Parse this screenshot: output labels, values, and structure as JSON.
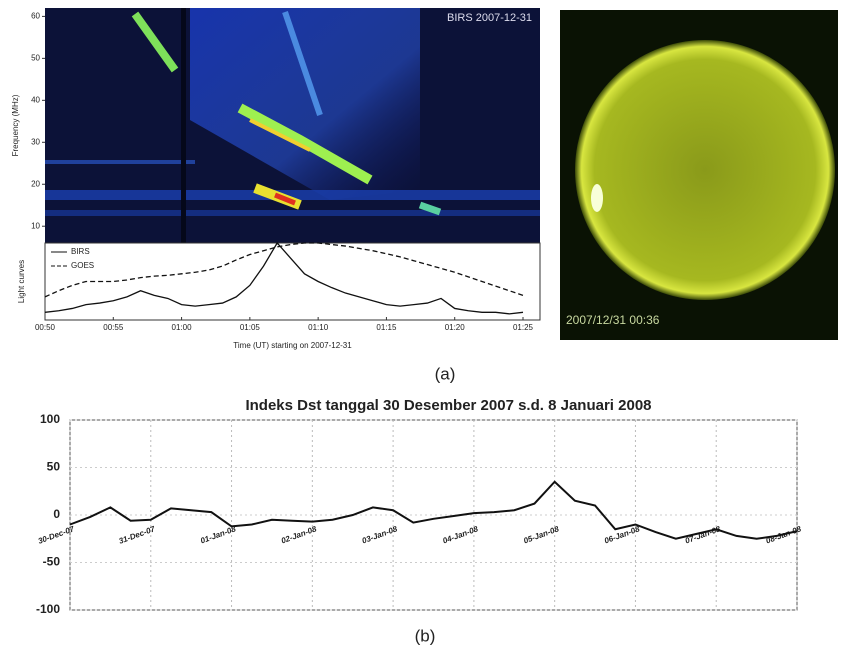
{
  "chart_data": [
    {
      "type": "spectrogram",
      "title": "BIRS 2007-12-31",
      "ylabel": "Frequency (MHz)",
      "ylim": [
        6,
        62
      ],
      "yticks": [
        10,
        20,
        30,
        40,
        50,
        60
      ]
    },
    {
      "type": "line",
      "ylabel": "Light curves",
      "xlabel": "Time (UT) starting on 2007-12-31",
      "legend": "upper left",
      "ylim": [
        0,
        1
      ],
      "categories": [
        "00:50",
        null,
        null,
        null,
        null,
        "00:55",
        null,
        null,
        null,
        null,
        "01:00",
        null,
        null,
        null,
        null,
        "01:05",
        null,
        null,
        null,
        null,
        "01:10",
        null,
        null,
        null,
        null,
        "01:15",
        null,
        null,
        null,
        null,
        "01:20",
        null,
        null,
        null,
        null,
        "01:25"
      ],
      "series": [
        {
          "name": "BIRS",
          "color": "#111111",
          "style": "solid",
          "values": [
            0.1,
            0.12,
            0.15,
            0.2,
            0.22,
            0.25,
            0.3,
            0.38,
            0.32,
            0.28,
            0.2,
            0.18,
            0.2,
            0.22,
            0.3,
            0.45,
            0.7,
            1.0,
            0.8,
            0.6,
            0.5,
            0.42,
            0.35,
            0.3,
            0.25,
            0.2,
            0.18,
            0.2,
            0.22,
            0.28,
            0.15,
            0.12,
            0.1,
            0.1,
            0.08,
            0.1
          ]
        },
        {
          "name": "GOES",
          "color": "#111111",
          "style": "dashed",
          "values": [
            0.3,
            0.38,
            0.45,
            0.5,
            0.5,
            0.5,
            0.52,
            0.55,
            0.57,
            0.58,
            0.6,
            0.62,
            0.65,
            0.7,
            0.78,
            0.85,
            0.9,
            0.95,
            0.98,
            1.0,
            1.0,
            0.98,
            0.96,
            0.93,
            0.9,
            0.86,
            0.82,
            0.77,
            0.72,
            0.67,
            0.62,
            0.56,
            0.5,
            0.44,
            0.38,
            0.32
          ]
        }
      ]
    },
    {
      "type": "line",
      "title": "Indeks Dst tanggal 30 Desember 2007 s.d. 8 Januari 2008",
      "ylim": [
        -100,
        100
      ],
      "yticks": [
        -100,
        -50,
        0,
        50,
        100
      ],
      "grid": true,
      "color": "#111111",
      "categories": [
        "30-Dec-07",
        null,
        null,
        null,
        "31-Dec-07",
        null,
        null,
        null,
        "01-Jan-08",
        null,
        null,
        null,
        "02-Jan-08",
        null,
        null,
        null,
        "03-Jan-08",
        null,
        null,
        null,
        "04-Jan-08",
        null,
        null,
        null,
        "05-Jan-08",
        null,
        null,
        null,
        "06-Jan-08",
        null,
        null,
        null,
        "07-Jan-08",
        null,
        null,
        null,
        "08-Jan-08"
      ],
      "values": [
        -10,
        -2,
        8,
        -6,
        -5,
        7,
        5,
        3,
        -12,
        -10,
        -5,
        -6,
        -7,
        -5,
        0,
        8,
        5,
        -8,
        -4,
        -1,
        2,
        3,
        5,
        12,
        35,
        15,
        10,
        -15,
        -10,
        -18,
        -25,
        -20,
        -15,
        -22,
        -25,
        -22,
        -17
      ]
    }
  ],
  "image": {
    "label": "2007/12/31 00:36"
  },
  "captions": [
    "(a)",
    "(b)"
  ]
}
